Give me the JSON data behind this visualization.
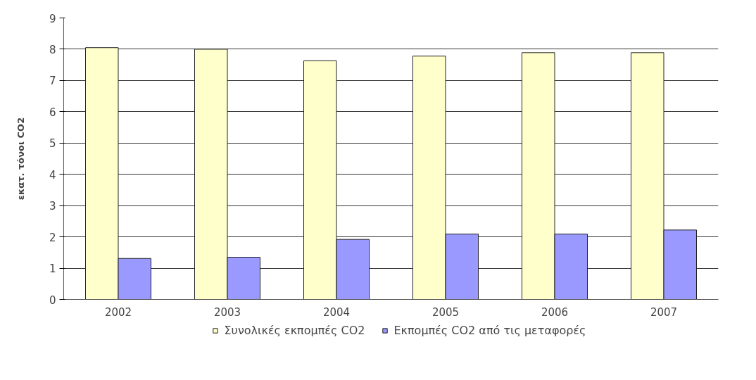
{
  "chart_data": {
    "type": "bar",
    "ylabel": "εκατ. τόνοι CO2",
    "categories": [
      "2002",
      "2003",
      "2004",
      "2005",
      "2006",
      "2007"
    ],
    "series": [
      {
        "name": "Συνολικές εκπομπές CO2",
        "color": "#ffffcc",
        "values": [
          8.05,
          8.0,
          7.63,
          7.78,
          7.89,
          7.89
        ]
      },
      {
        "name": "Εκπομπές CO2 από τις μεταφορές",
        "color": "#9999ff",
        "values": [
          1.31,
          1.35,
          1.92,
          2.09,
          2.09,
          2.22
        ]
      }
    ],
    "ylim": [
      0,
      9
    ],
    "yticks": [
      0,
      1,
      2,
      3,
      4,
      5,
      6,
      7,
      8,
      9
    ],
    "grid": "y",
    "legend": "bottom"
  }
}
